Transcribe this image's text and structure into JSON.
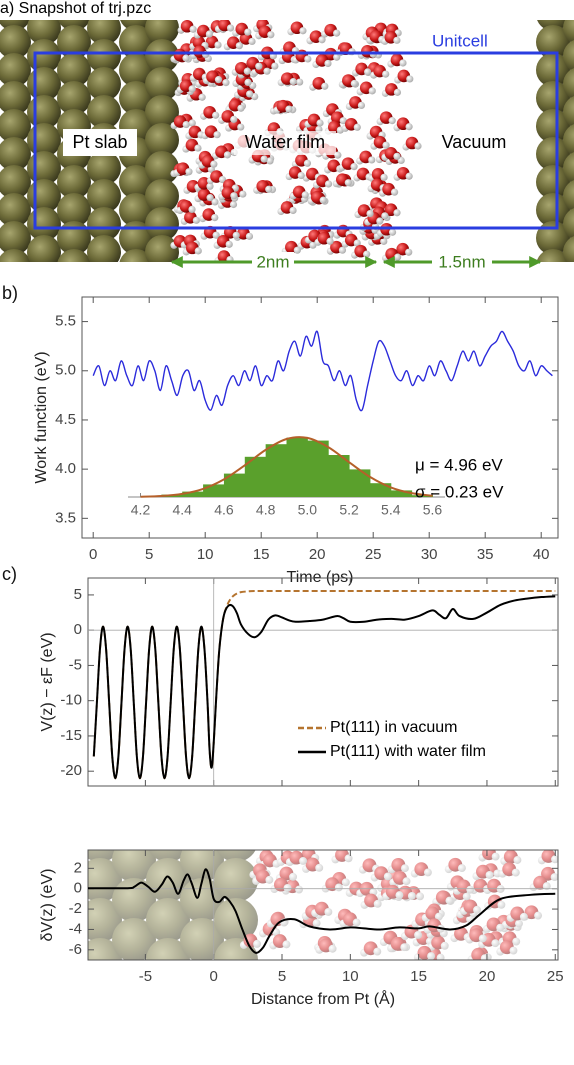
{
  "panel_a": {
    "label": "a) Snapshot of trj.pzc",
    "unitcell": "Unitcell",
    "pt_slab": "Pt slab",
    "water_film": "Water film",
    "vacuum": "Vacuum",
    "width_water": "2nm",
    "width_vacuum": "1.5nm"
  },
  "chart_data": [
    {
      "type": "line",
      "panel_label": "b)",
      "xlabel": "Time (ps)",
      "ylabel": "Work function (eV)",
      "color": "#2b2bdb",
      "frame": true,
      "x": [
        0,
        0.5,
        1,
        1.5,
        2,
        2.5,
        3,
        3.5,
        4,
        4.5,
        5,
        5.5,
        6,
        6.5,
        7,
        7.5,
        8,
        8.5,
        9,
        9.5,
        10,
        10.5,
        11,
        11.5,
        12,
        12.5,
        13,
        13.5,
        14,
        14.5,
        15,
        15.5,
        16,
        16.5,
        17,
        17.5,
        18,
        18.5,
        19,
        19.5,
        20,
        20.5,
        21,
        21.5,
        22,
        22.5,
        23,
        23.5,
        24,
        24.5,
        25,
        25.5,
        26,
        26.5,
        27,
        27.5,
        28,
        28.5,
        29,
        29.5,
        30,
        30.5,
        31,
        31.5,
        32,
        32.5,
        33,
        33.5,
        34,
        34.5,
        35,
        35.5,
        36,
        36.5,
        37,
        37.5,
        38,
        38.5,
        39,
        39.5,
        40,
        40.5,
        41
      ],
      "values": [
        4.95,
        5.05,
        4.85,
        5.0,
        4.9,
        5.1,
        4.95,
        4.85,
        5.05,
        4.9,
        5.1,
        5.0,
        4.8,
        5.05,
        4.9,
        4.75,
        4.95,
        5.0,
        4.8,
        4.9,
        4.7,
        4.6,
        4.75,
        4.65,
        4.85,
        4.95,
        4.85,
        5.0,
        4.9,
        5.05,
        4.85,
        4.95,
        4.9,
        5.1,
        5.0,
        5.2,
        5.3,
        5.15,
        5.35,
        5.25,
        5.4,
        5.1,
        5.05,
        4.9,
        5.0,
        4.85,
        4.95,
        4.7,
        4.6,
        4.85,
        5.1,
        5.3,
        5.25,
        5.1,
        4.95,
        4.9,
        5.0,
        4.85,
        4.95,
        4.9,
        5.05,
        4.95,
        5.1,
        5.0,
        4.9,
        5.05,
        5.2,
        5.1,
        5.2,
        5.05,
        5.15,
        5.25,
        5.3,
        5.4,
        5.3,
        5.2,
        5.05,
        5.0,
        5.1,
        4.95,
        5.05,
        5.0,
        4.95
      ],
      "xlim": [
        -1,
        41.5
      ],
      "ylim": [
        3.3,
        5.75
      ],
      "xticks": [
        0,
        5,
        10,
        15,
        20,
        25,
        30,
        35,
        40
      ],
      "yticks": [
        {
          "value": 3.5,
          "label": "3.5"
        },
        {
          "value": 4,
          "label": "4.0"
        },
        {
          "value": 4.5,
          "label": "4.5"
        },
        {
          "value": 5,
          "label": "5.0"
        },
        {
          "value": 5.5,
          "label": "5.5"
        }
      ]
    },
    {
      "type": "histogram",
      "color": "#5aa02c",
      "bins": [
        4.2,
        4.3,
        4.4,
        4.5,
        4.6,
        4.7,
        4.8,
        4.9,
        5.0,
        5.1,
        5.2,
        5.3,
        5.4,
        5.5,
        5.6
      ],
      "values": [
        1,
        4,
        9,
        21,
        39,
        67,
        88,
        99,
        94,
        70,
        46,
        23,
        11,
        3
      ],
      "fit": {
        "color": "#b5602a",
        "x": [
          4.2,
          4.3,
          4.4,
          4.5,
          4.6,
          4.7,
          4.8,
          4.9,
          5.0,
          5.1,
          5.2,
          5.3,
          5.4,
          5.5,
          5.6
        ],
        "values": [
          0.4,
          1.6,
          5.2,
          13.5,
          29.4,
          52.8,
          78.5,
          96.7,
          98.5,
          83.1,
          58.0,
          33.5,
          16.0,
          6.4,
          2.1
        ]
      },
      "xlim": [
        4.14,
        5.66
      ],
      "ylim": [
        0,
        100
      ],
      "xticks": [
        4.2,
        4.4,
        4.6,
        4.8,
        {
          "value": 5,
          "label": "5.0"
        },
        5.2,
        5.4,
        5.6
      ],
      "annotations": [
        "μ = 4.96 eV",
        "σ = 0.23 eV"
      ]
    },
    {
      "type": "line",
      "panel_label": "c)",
      "ylabel": "V(z) − εF (eV)",
      "frame": true,
      "zero_lines": true,
      "xtick_labels": false,
      "legend": "right",
      "xlim": [
        -9.2,
        25.2
      ],
      "ylim": [
        -22.1,
        7.4
      ],
      "xticks": [
        -5,
        0,
        5,
        10,
        15,
        20,
        25
      ],
      "yticks": [
        5,
        0,
        -5,
        -10,
        -15,
        -20
      ],
      "series": [
        {
          "name": "Pt(111) in vacuum",
          "color": "#b5742f",
          "line_style": "dashed",
          "x": [
            -8.775,
            -8.55,
            -8.325,
            -8.1,
            -7.875,
            -7.65,
            -7.425,
            -7.2,
            -6.975,
            -6.75,
            -6.525,
            -6.3,
            -6.075,
            -5.85,
            -5.625,
            -5.4,
            -5.175,
            -4.95,
            -4.725,
            -4.5,
            -4.275,
            -4.05,
            -3.825,
            -3.6,
            -3.375,
            -3.15,
            -2.925,
            -2.7,
            -2.475,
            -2.25,
            -2.025,
            -1.8,
            -1.575,
            -1.35,
            -1.125,
            -0.9,
            -0.675,
            -0.45,
            -0.3,
            -0.15,
            0.0,
            0.2,
            0.4,
            0.6,
            0.8,
            1.1,
            1.4,
            1.7,
            2.0,
            2.5,
            3.0,
            5.0,
            10.0,
            15.0,
            20.0,
            25.0
          ],
          "values": [
            -17.9,
            -10.3,
            -2.7,
            0.5,
            -2.7,
            -10.3,
            -17.9,
            -21,
            -17.9,
            -10.3,
            -2.7,
            0.5,
            -2.7,
            -10.3,
            -17.9,
            -21,
            -17.9,
            -10.3,
            -2.7,
            0.5,
            -2.7,
            -10.3,
            -17.9,
            -21,
            -17.9,
            -10.3,
            -2.7,
            0.5,
            -2.7,
            -10.3,
            -17.9,
            -21,
            -17.9,
            -10.3,
            -2.7,
            0.5,
            -2.7,
            -10.3,
            -17,
            -19.5,
            -16,
            -9,
            -3,
            0.5,
            2.5,
            4.0,
            4.8,
            5.2,
            5.4,
            5.5,
            5.55,
            5.55,
            5.55,
            5.55,
            5.55,
            5.55
          ]
        },
        {
          "name": "Pt(111) with water film",
          "color": "#000000",
          "line_style": "solid",
          "x": [
            -8.775,
            -8.55,
            -8.325,
            -8.1,
            -7.875,
            -7.65,
            -7.425,
            -7.2,
            -6.975,
            -6.75,
            -6.525,
            -6.3,
            -6.075,
            -5.85,
            -5.625,
            -5.4,
            -5.175,
            -4.95,
            -4.725,
            -4.5,
            -4.275,
            -4.05,
            -3.825,
            -3.6,
            -3.375,
            -3.15,
            -2.925,
            -2.7,
            -2.475,
            -2.25,
            -2.025,
            -1.8,
            -1.575,
            -1.35,
            -1.125,
            -0.9,
            -0.675,
            -0.45,
            -0.3,
            -0.15,
            0.0,
            0.2,
            0.4,
            0.6,
            0.8,
            1.1,
            1.4,
            1.7,
            2.0,
            2.5,
            3.0,
            3.5,
            4.0,
            4.5,
            5.0,
            5.5,
            6.0,
            7.0,
            8.0,
            9.0,
            9.5,
            10.0,
            11.0,
            12.0,
            13.0,
            14.0,
            15.0,
            16.0,
            16.5,
            17.0,
            17.5,
            18.0,
            19.0,
            20.0,
            21.0,
            22.0,
            23.0,
            24.0,
            25.0
          ],
          "values": [
            -17.9,
            -10.3,
            -2.7,
            0.5,
            -2.7,
            -10.3,
            -17.9,
            -21,
            -17.9,
            -10.3,
            -2.7,
            0.5,
            -2.7,
            -10.3,
            -17.9,
            -21,
            -17.9,
            -10.3,
            -2.7,
            0.5,
            -2.7,
            -10.3,
            -17.9,
            -21,
            -17.9,
            -10.3,
            -2.7,
            0.5,
            -2.7,
            -10.3,
            -17.9,
            -21,
            -17.9,
            -10.3,
            -2.7,
            0.5,
            -2.7,
            -10.3,
            -17,
            -19.5,
            -16,
            -9,
            -3,
            0.5,
            2.5,
            3.5,
            3.4,
            2.4,
            0.8,
            -0.5,
            -1.0,
            -0.2,
            1.5,
            2.1,
            1.8,
            1.4,
            1.2,
            1.3,
            1.5,
            2.0,
            1.7,
            1.2,
            1.2,
            1.5,
            1.6,
            1.5,
            2.0,
            2.8,
            2.2,
            1.7,
            3.0,
            2.0,
            1.6,
            2.5,
            3.6,
            4.2,
            4.5,
            4.7,
            4.8
          ]
        }
      ]
    },
    {
      "type": "line",
      "ylabel": "δV(z) (eV)",
      "xlabel": "Distance from Pt (Å)",
      "frame": true,
      "zero_lines": true,
      "color": "#000000",
      "xlim": [
        -9.2,
        25.2
      ],
      "ylim": [
        -7,
        3.8
      ],
      "xticks": [
        -5,
        0,
        5,
        10,
        15,
        20,
        25
      ],
      "yticks": [
        2,
        0,
        -2,
        -4,
        -6
      ],
      "x": [
        -9.2,
        -6.3,
        -5.8,
        -5.3,
        -4.8,
        -4.3,
        -3.8,
        -3.4,
        -3.0,
        -2.6,
        -2.2,
        -1.9,
        -1.6,
        -1.2,
        -0.9,
        -0.6,
        -0.3,
        0.0,
        0.4,
        0.8,
        1.2,
        1.6,
        2.1,
        2.6,
        3.1,
        3.6,
        4.1,
        4.8,
        5.9,
        7.0,
        8.5,
        10.0,
        11.0,
        12.2,
        13.6,
        15.0,
        15.8,
        17.3,
        18.5,
        19.5,
        21.0,
        23.2,
        25.0
      ],
      "values": [
        0.05,
        0.05,
        0.2,
        0.6,
        0.2,
        -0.3,
        0.4,
        1.2,
        0.6,
        -0.5,
        0.8,
        1.4,
        0.5,
        -0.9,
        0.5,
        1.9,
        1.0,
        -1.0,
        -1.3,
        -0.8,
        -1.3,
        -2.2,
        -4.0,
        -5.6,
        -6.3,
        -5.8,
        -4.6,
        -3.3,
        -3.0,
        -3.7,
        -4.0,
        -3.8,
        -3.9,
        -4.0,
        -3.8,
        -3.9,
        -3.7,
        -4.0,
        -3.6,
        -2.5,
        -1.0,
        -0.6,
        -0.5
      ]
    }
  ]
}
